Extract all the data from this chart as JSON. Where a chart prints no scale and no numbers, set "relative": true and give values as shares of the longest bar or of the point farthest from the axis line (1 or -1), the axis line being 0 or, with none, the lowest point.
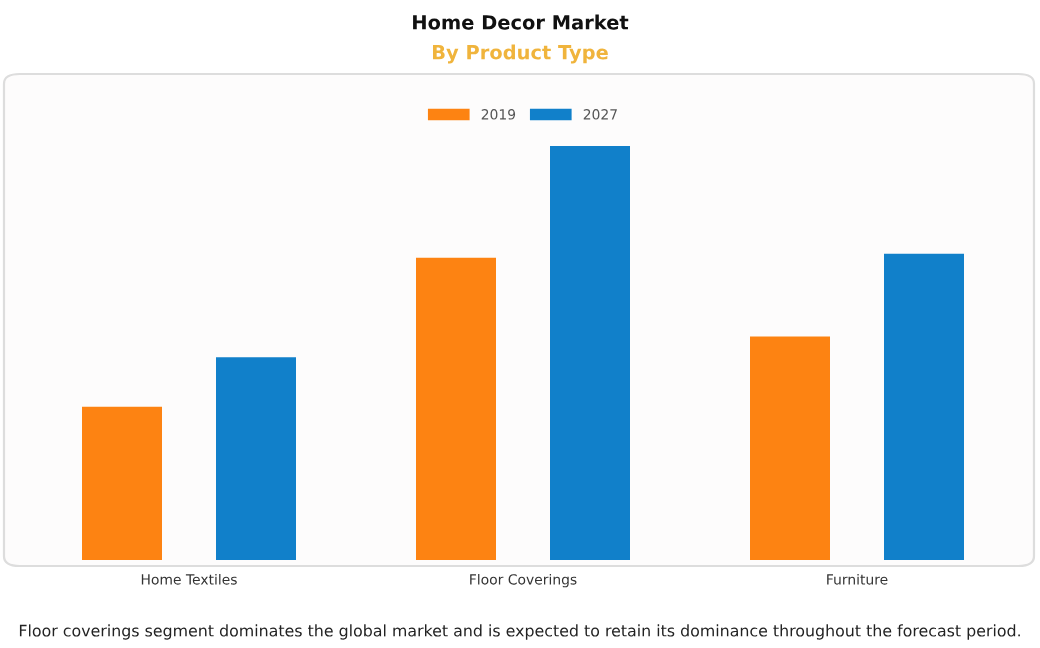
{
  "chart_data": {
    "type": "bar",
    "title": "Home Decor Market",
    "subtitle": "By Product Type",
    "categories": [
      "Home Textiles",
      "Floor Coverings",
      "Furniture"
    ],
    "relative": true,
    "series": [
      {
        "name": "2019",
        "color": "#fd8312",
        "values": [
          0.37,
          0.73,
          0.54
        ]
      },
      {
        "name": "2027",
        "color": "#1180ca",
        "values": [
          0.49,
          1.0,
          0.74
        ]
      }
    ],
    "legend": "top",
    "annotations": [
      "Floor coverings segment dominates the global market and is expected to retain its dominance throughout the forecast period."
    ]
  }
}
